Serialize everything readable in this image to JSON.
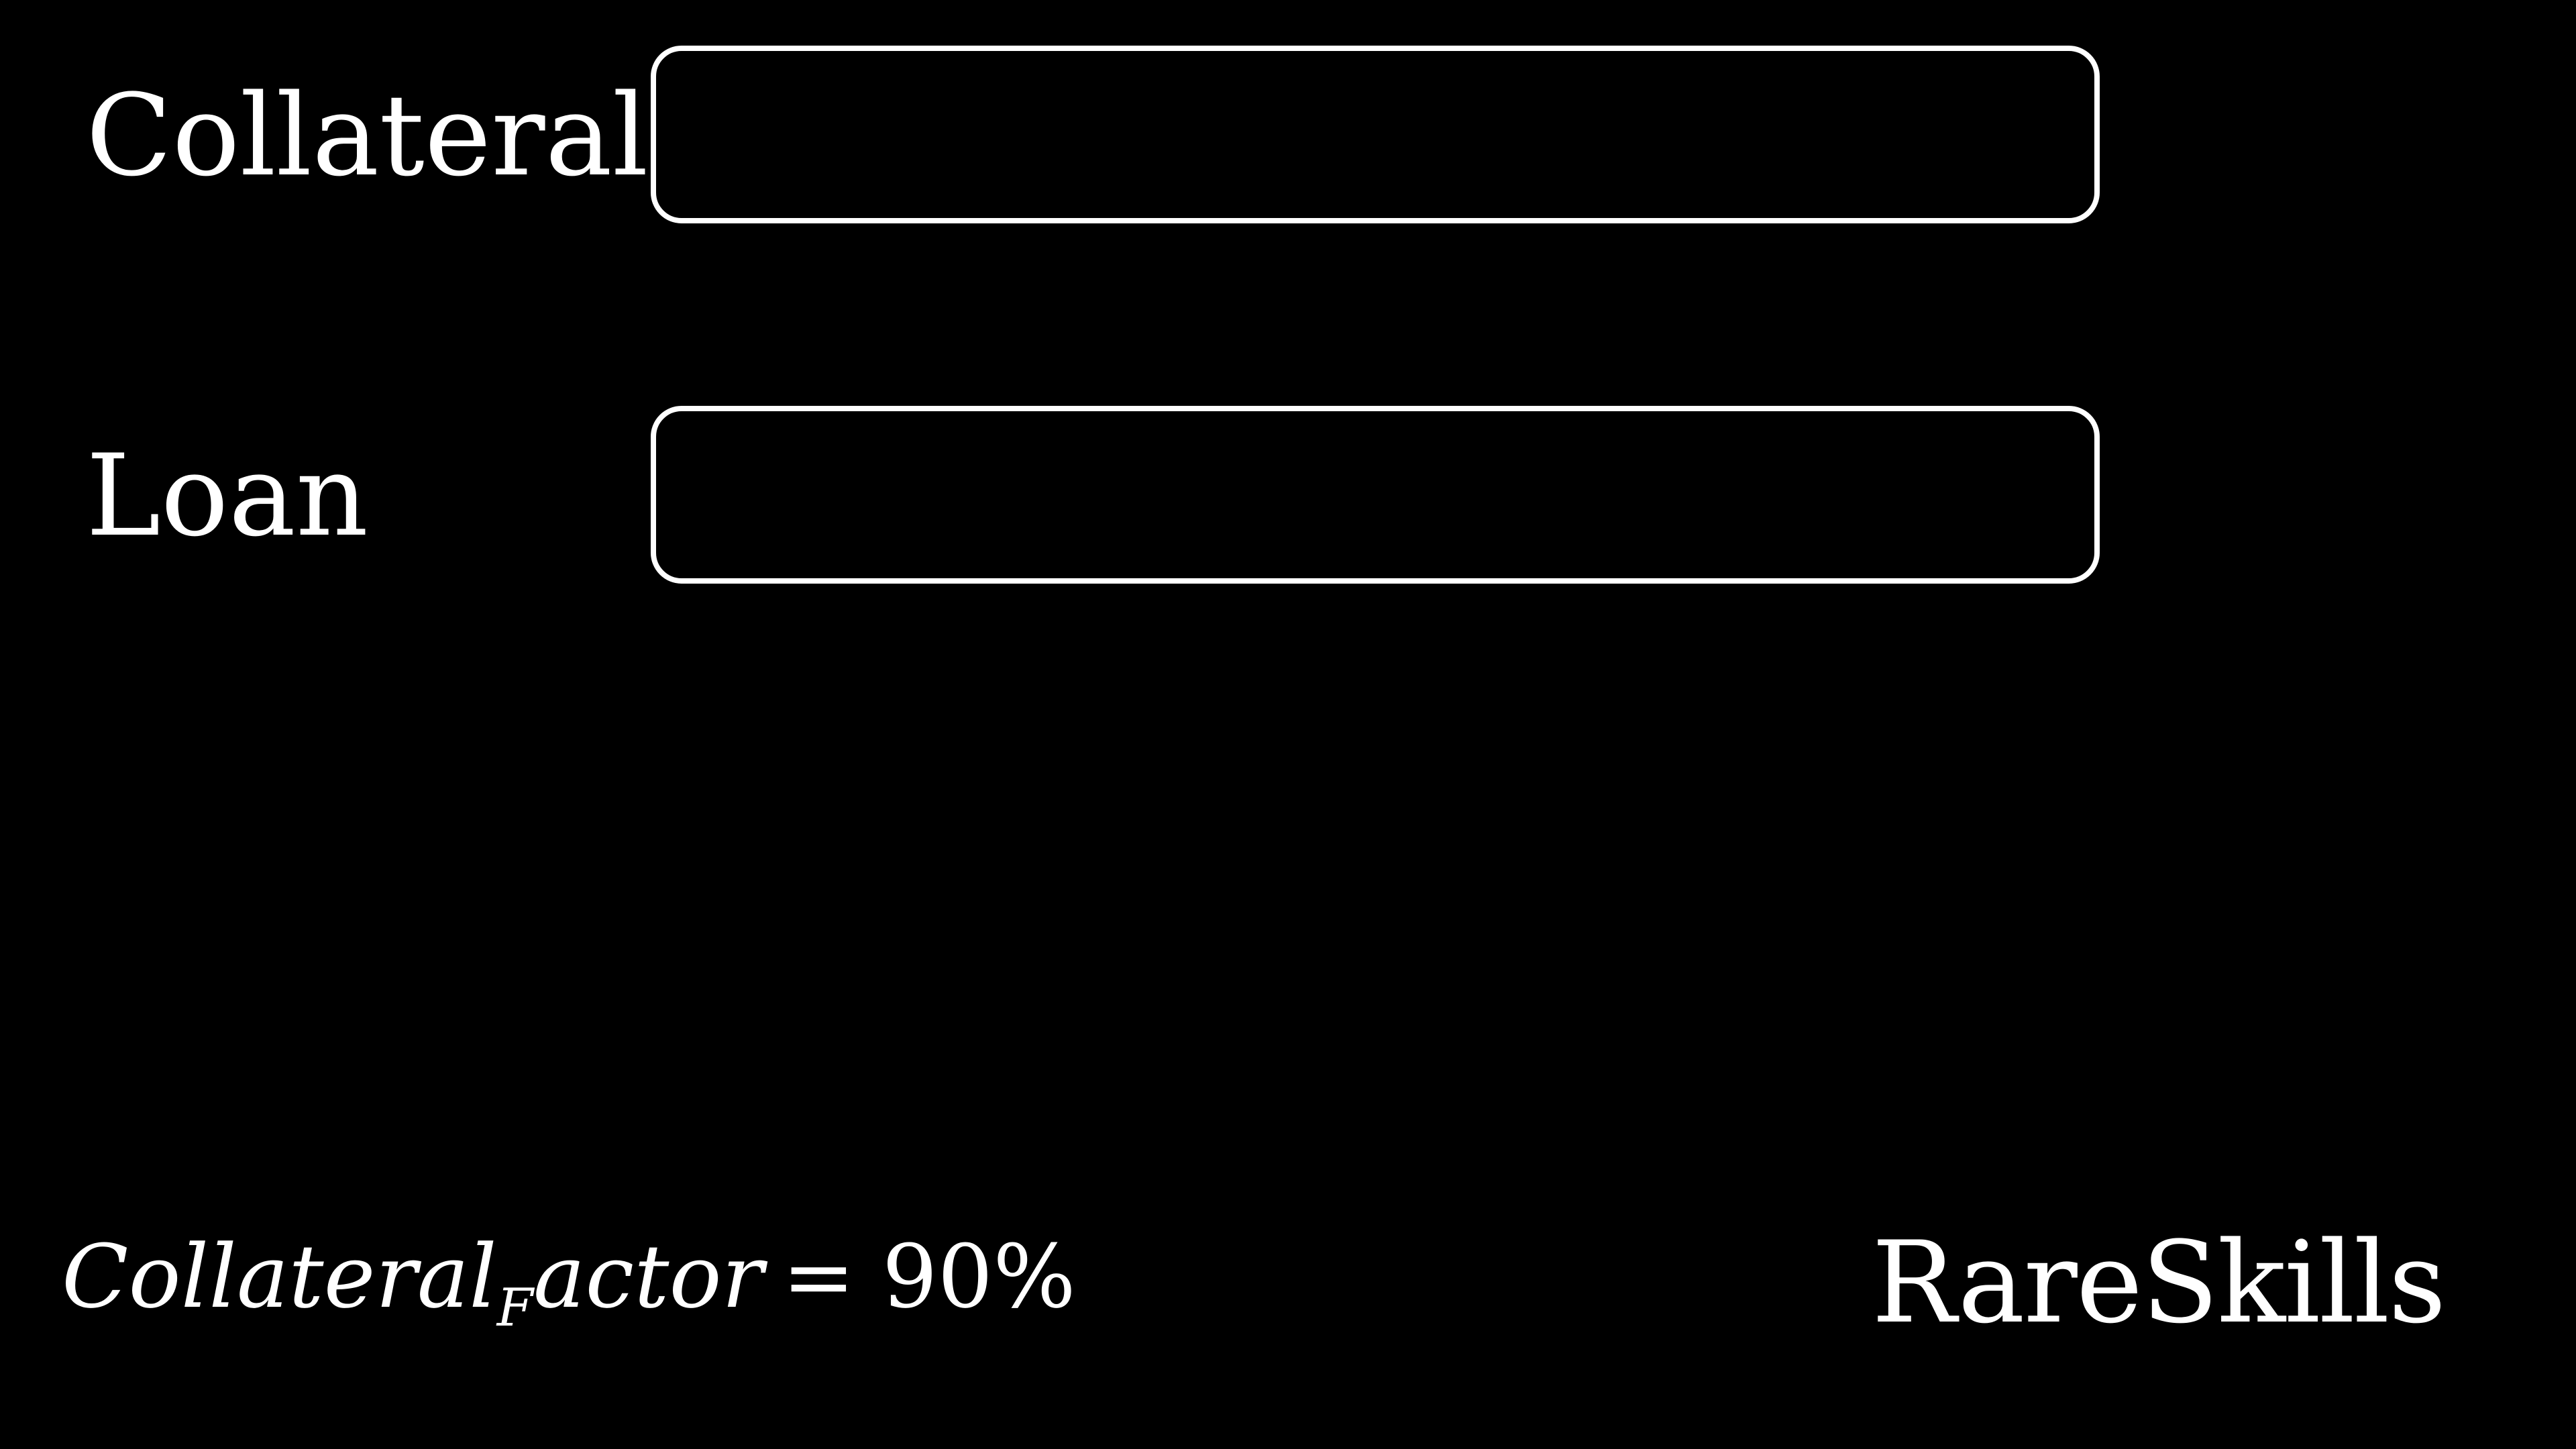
{
  "rows": {
    "collateral": {
      "label": "Collateral"
    },
    "loan": {
      "label": "Loan"
    }
  },
  "formula": {
    "base": "Collateral",
    "subscript": "F",
    "tail": "actor",
    "equals": "=",
    "value": "90%"
  },
  "brand": {
    "name": "RareSkills"
  },
  "colors": {
    "background": "#000000",
    "foreground": "#ffffff"
  }
}
